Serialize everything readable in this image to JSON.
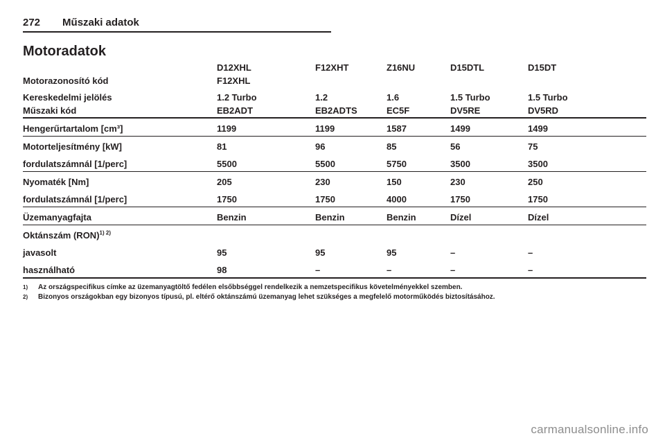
{
  "page": {
    "number": "272",
    "section": "Műszaki adatok",
    "title": "Motoradatok"
  },
  "table": {
    "labels": {
      "engine_id": "Motorazonosító kód",
      "trade": "Kereskedelmi jelölés",
      "tech": "Műszaki kód",
      "displacement": "Hengerűrtartalom [cm³]",
      "power": "Motorteljesítmény [kW]",
      "at_rpm": "fordulatszámnál [1/perc]",
      "torque": "Nyomaték [Nm]",
      "fuel": "Üzemanyagfajta",
      "octane": "Oktánszám (RON)",
      "octane_sup": "1) 2)",
      "recommended": "javasolt",
      "possible": "használható"
    },
    "columns": [
      {
        "code1": "D12XHL",
        "code2": "F12XHL",
        "trade": "1.2 Turbo",
        "tech": "EB2ADT",
        "displacement": "1199",
        "power": "81",
        "power_rpm": "5500",
        "torque": "205",
        "torque_rpm": "1750",
        "fuel": "Benzin",
        "ron_recommended": "95",
        "ron_possible": "98"
      },
      {
        "code1": "F12XHT",
        "code2": "",
        "trade": "1.2",
        "tech": "EB2ADTS",
        "displacement": "1199",
        "power": "96",
        "power_rpm": "5500",
        "torque": "230",
        "torque_rpm": "1750",
        "fuel": "Benzin",
        "ron_recommended": "95",
        "ron_possible": "–"
      },
      {
        "code1": "Z16NU",
        "code2": "",
        "trade": "1.6",
        "tech": "EC5F",
        "displacement": "1587",
        "power": "85",
        "power_rpm": "5750",
        "torque": "150",
        "torque_rpm": "4000",
        "fuel": "Benzin",
        "ron_recommended": "95",
        "ron_possible": "–"
      },
      {
        "code1": "D15DTL",
        "code2": "",
        "trade": "1.5 Turbo",
        "tech": "DV5RE",
        "displacement": "1499",
        "power": "56",
        "power_rpm": "3500",
        "torque": "230",
        "torque_rpm": "1750",
        "fuel": "Dízel",
        "ron_recommended": "–",
        "ron_possible": "–"
      },
      {
        "code1": "D15DT",
        "code2": "",
        "trade": "1.5 Turbo",
        "tech": "DV5RD",
        "displacement": "1499",
        "power": "75",
        "power_rpm": "3500",
        "torque": "250",
        "torque_rpm": "1750",
        "fuel": "Dízel",
        "ron_recommended": "–",
        "ron_possible": "–"
      }
    ]
  },
  "footnotes": [
    {
      "marker": "1)",
      "text": "Az országspecifikus címke az üzemanyagtöltő fedélen elsőbbséggel rendelkezik a nemzetspecifikus követelményekkel szemben."
    },
    {
      "marker": "2)",
      "text": "Bizonyos országokban egy bizonyos típusú, pl. eltérő oktánszámú üzemanyag lehet szükséges a megfelelő motorműködés biztosításához."
    }
  ],
  "watermark": "carmanualsonline.info"
}
